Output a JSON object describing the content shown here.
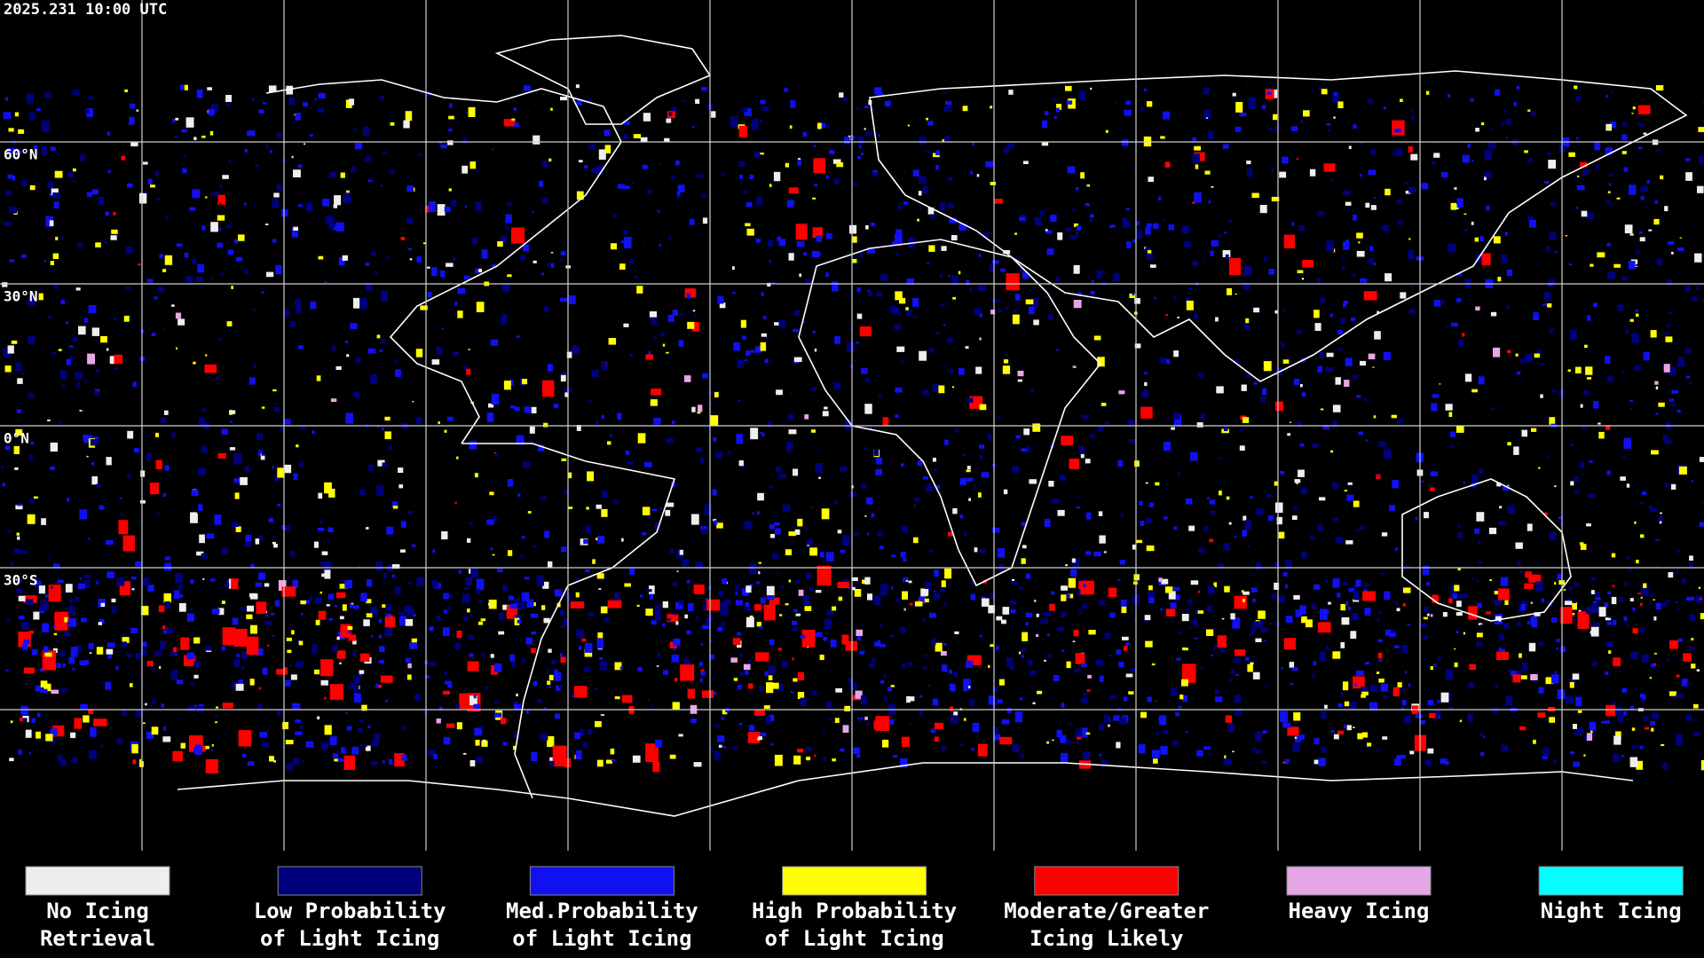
{
  "header": {
    "timestamp": "2025.231 10:00 UTC"
  },
  "map": {
    "latitude_labels": [
      "60°N",
      "30°N",
      "0°N",
      "30°S"
    ]
  },
  "legend": {
    "items": [
      {
        "label": [
          "No Icing",
          "Retrieval"
        ],
        "color": "#eeeeee"
      },
      {
        "label": [
          "Low Probability",
          "of Light Icing"
        ],
        "color": "#00007a"
      },
      {
        "label": [
          "Med.Probability",
          "of Light Icing"
        ],
        "color": "#1010f0"
      },
      {
        "label": [
          "High Probability",
          "of Light Icing"
        ],
        "color": "#ffff00"
      },
      {
        "label": [
          "Moderate/Greater",
          "Icing Likely"
        ],
        "color": "#ff0000"
      },
      {
        "label": [
          "Heavy Icing"
        ],
        "color": "#e6a6e6"
      },
      {
        "label": [
          "Night Icing"
        ],
        "color": "#00ffff"
      }
    ]
  }
}
